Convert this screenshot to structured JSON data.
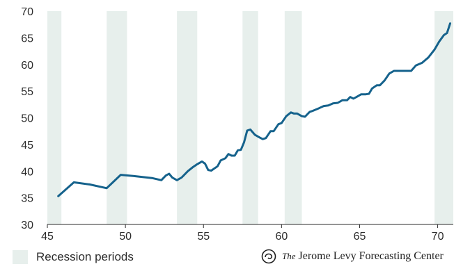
{
  "chart_data": {
    "type": "line",
    "title": "",
    "xlabel": "",
    "ylabel": "",
    "xlim": [
      45,
      71
    ],
    "ylim": [
      30,
      70
    ],
    "x_ticks": [
      45,
      50,
      55,
      60,
      65,
      70
    ],
    "y_ticks": [
      30,
      35,
      40,
      45,
      50,
      55,
      60,
      65,
      70
    ],
    "grid": false,
    "line_color": "#15628c",
    "band_color": "#e7efec",
    "recessions": [
      [
        45.0,
        45.9
      ],
      [
        48.8,
        50.1
      ],
      [
        53.3,
        54.6
      ],
      [
        57.5,
        58.5
      ],
      [
        60.2,
        61.3
      ],
      [
        69.8,
        71.0
      ]
    ],
    "series": [
      {
        "points": [
          [
            45.7,
            35.3
          ],
          [
            46.7,
            37.9
          ],
          [
            47.7,
            37.5
          ],
          [
            48.8,
            36.8
          ],
          [
            49.7,
            39.3
          ],
          [
            50.5,
            39.1
          ],
          [
            51.7,
            38.7
          ],
          [
            52.3,
            38.3
          ],
          [
            52.6,
            39.2
          ],
          [
            52.8,
            39.5
          ],
          [
            53.0,
            38.8
          ],
          [
            53.3,
            38.3
          ],
          [
            53.6,
            38.8
          ],
          [
            54.0,
            40.0
          ],
          [
            54.3,
            40.7
          ],
          [
            54.6,
            41.3
          ],
          [
            54.9,
            41.8
          ],
          [
            55.1,
            41.4
          ],
          [
            55.3,
            40.2
          ],
          [
            55.5,
            40.1
          ],
          [
            55.9,
            40.9
          ],
          [
            56.1,
            42.0
          ],
          [
            56.4,
            42.4
          ],
          [
            56.6,
            43.2
          ],
          [
            56.8,
            42.9
          ],
          [
            57.0,
            42.9
          ],
          [
            57.2,
            43.9
          ],
          [
            57.4,
            44.0
          ],
          [
            57.6,
            45.4
          ],
          [
            57.8,
            47.6
          ],
          [
            58.0,
            47.8
          ],
          [
            58.3,
            46.8
          ],
          [
            58.6,
            46.3
          ],
          [
            58.8,
            46.0
          ],
          [
            59.0,
            46.2
          ],
          [
            59.3,
            47.5
          ],
          [
            59.5,
            47.5
          ],
          [
            59.8,
            48.8
          ],
          [
            60.0,
            49.0
          ],
          [
            60.3,
            50.3
          ],
          [
            60.6,
            51.0
          ],
          [
            60.8,
            50.8
          ],
          [
            61.0,
            50.8
          ],
          [
            61.3,
            50.3
          ],
          [
            61.5,
            50.2
          ],
          [
            61.8,
            51.1
          ],
          [
            62.0,
            51.3
          ],
          [
            62.4,
            51.8
          ],
          [
            62.7,
            52.2
          ],
          [
            63.0,
            52.3
          ],
          [
            63.3,
            52.7
          ],
          [
            63.6,
            52.8
          ],
          [
            63.9,
            53.3
          ],
          [
            64.2,
            53.3
          ],
          [
            64.4,
            53.9
          ],
          [
            64.6,
            53.6
          ],
          [
            64.8,
            53.9
          ],
          [
            65.1,
            54.4
          ],
          [
            65.4,
            54.4
          ],
          [
            65.6,
            54.5
          ],
          [
            65.8,
            55.5
          ],
          [
            66.1,
            56.1
          ],
          [
            66.3,
            56.1
          ],
          [
            66.6,
            57.0
          ],
          [
            66.9,
            58.3
          ],
          [
            67.2,
            58.8
          ],
          [
            67.6,
            58.8
          ],
          [
            68.0,
            58.8
          ],
          [
            68.3,
            58.8
          ],
          [
            68.6,
            59.8
          ],
          [
            69.0,
            60.3
          ],
          [
            69.4,
            61.3
          ],
          [
            69.8,
            62.8
          ],
          [
            70.1,
            64.3
          ],
          [
            70.4,
            65.5
          ],
          [
            70.6,
            65.9
          ],
          [
            70.8,
            67.7
          ]
        ]
      }
    ]
  },
  "legend": {
    "label": "Recession periods"
  },
  "branding": {
    "the": "The",
    "name": "Jerome Levy Forecasting Center"
  }
}
